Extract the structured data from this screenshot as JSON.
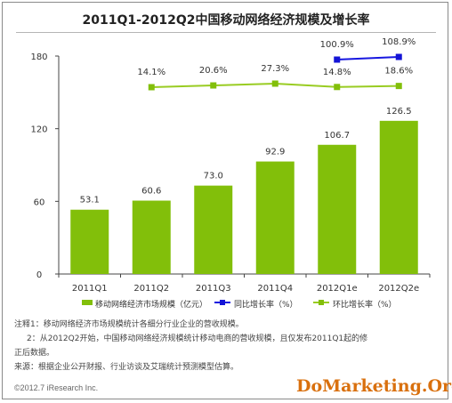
{
  "title": "2011Q1-2012Q2中国移动网络经济规模及增长率",
  "chart_data": {
    "type": "bar",
    "categories": [
      "2011Q1",
      "2011Q2",
      "2011Q3",
      "2011Q4",
      "2012Q1e",
      "2012Q2e"
    ],
    "ylim": [
      0,
      180
    ],
    "yticks": [
      0,
      60,
      120,
      180
    ],
    "grid": false,
    "legend_position": "bottom",
    "series": [
      {
        "name": "移动网络经济市场规模（亿元）",
        "type": "bar",
        "color": "#82bf0a",
        "values": [
          53.1,
          60.6,
          73.0,
          92.9,
          106.7,
          126.5
        ],
        "labels": [
          "53.1",
          "60.6",
          "73.0",
          "92.9",
          "106.7",
          "126.5"
        ]
      },
      {
        "name": "同比增长率（%）",
        "type": "line",
        "color": "#1717e0",
        "values": [
          null,
          null,
          null,
          null,
          100.9,
          108.9
        ],
        "labels": [
          "",
          "",
          "",
          "",
          "100.9%",
          "108.9%"
        ]
      },
      {
        "name": "环比增长率（%）",
        "type": "line",
        "color": "#99cc22",
        "values": [
          null,
          14.1,
          20.6,
          27.3,
          14.8,
          18.6
        ],
        "labels": [
          "",
          "14.1%",
          "20.6%",
          "27.3%",
          "14.8%",
          "18.6%"
        ]
      }
    ]
  },
  "notes": {
    "line1": "注释1：移动网络经济市场规模统计各细分行业企业的营收规模。",
    "line2": "2：从2012Q2开始，中国移动网络经济规模统计移动电商的营收规模，且仅发布2011Q1起的修",
    "line3": "正后数据。",
    "line4": "来源：根据企业公开财报、行业访谈及艾瑞统计预测模型估算。"
  },
  "copyright": "©2012.7 iResearch Inc.",
  "watermark": "DoMarketing.Org"
}
